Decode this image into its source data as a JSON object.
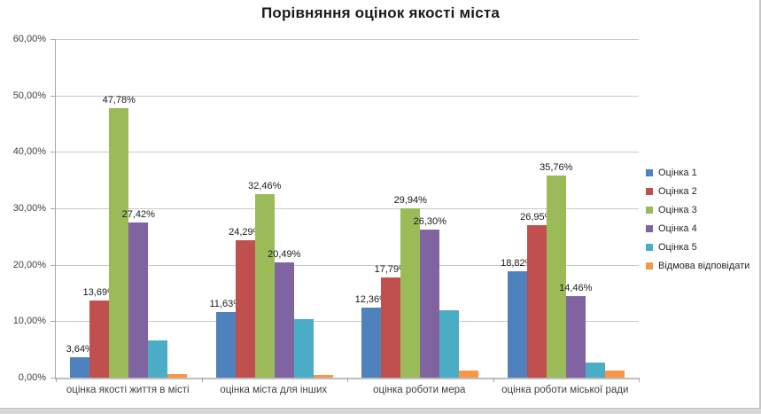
{
  "chart_data": {
    "type": "bar",
    "title": "Порівняння оцінок якості міста",
    "categories": [
      "оцінка якості життя в місті",
      "оцінка міста для інших",
      "оцінка роботи мера",
      "оцінка роботи міської ради"
    ],
    "series": [
      {
        "name": "Оцінка 1",
        "color": "#4F81BD",
        "values": [
          3.64,
          11.63,
          12.36,
          18.82
        ],
        "labels_shown": true
      },
      {
        "name": "Оцінка 2",
        "color": "#C0504D",
        "values": [
          13.69,
          24.29,
          17.79,
          26.95
        ],
        "labels_shown": true
      },
      {
        "name": "Оцінка 3",
        "color": "#9BBB59",
        "values": [
          47.78,
          32.46,
          29.94,
          35.76
        ],
        "labels_shown": true
      },
      {
        "name": "Оцінка 4",
        "color": "#8064A2",
        "values": [
          27.42,
          20.49,
          26.3,
          14.46
        ],
        "labels_shown": true
      },
      {
        "name": "Оцінка 5",
        "color": "#4BACC6",
        "values": [
          6.6,
          10.4,
          12.0,
          2.6
        ],
        "labels_shown": false
      },
      {
        "name": "Відмова відповідати",
        "color": "#F79646",
        "values": [
          0.7,
          0.5,
          1.2,
          1.3
        ],
        "labels_shown": false
      }
    ],
    "ylim": [
      0,
      60
    ],
    "y_tick_step": 10,
    "y_tick_labels": [
      "0,00%",
      "10,00%",
      "20,00%",
      "30,00%",
      "40,00%",
      "50,00%",
      "60,00%"
    ],
    "grid": true,
    "grid_color": "#C9C9C9",
    "axis_color": "#A6A6A6",
    "legend_position": "right",
    "value_format": "percent_comma_2dp"
  }
}
